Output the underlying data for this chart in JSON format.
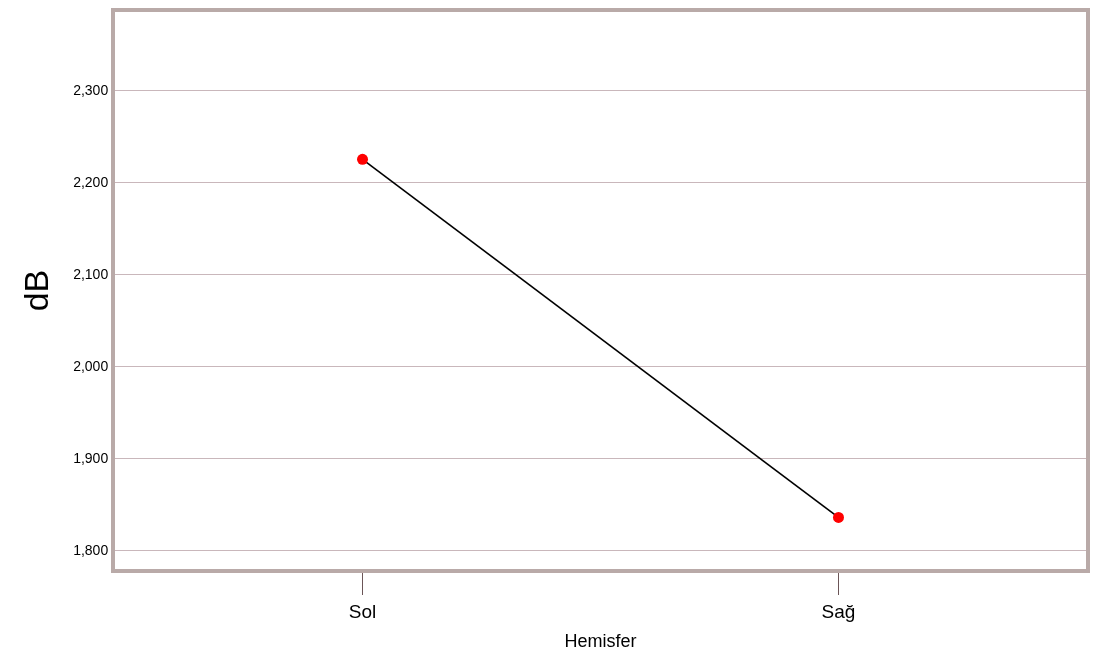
{
  "chart_data": {
    "type": "line",
    "xlabel": "Hemisfer",
    "ylabel": "dB",
    "categories": [
      "Sol",
      "Sağ"
    ],
    "series": [
      {
        "color": "#000000",
        "colors": [
          "#ff0000",
          "#ff0000"
        ],
        "values": [
          2225,
          1836
        ]
      }
    ],
    "marker": "circle",
    "line_style": "solid",
    "grid": "y",
    "ylim": [
      1780,
      2385
    ],
    "yticks": [
      {
        "value": 1800,
        "label": "1,800"
      },
      {
        "value": 1900,
        "label": "1,900"
      },
      {
        "value": 2000,
        "label": "2,000"
      },
      {
        "value": 2100,
        "label": "2,100"
      },
      {
        "value": 2200,
        "label": "2,200"
      },
      {
        "value": 2300,
        "label": "2,300"
      }
    ]
  }
}
